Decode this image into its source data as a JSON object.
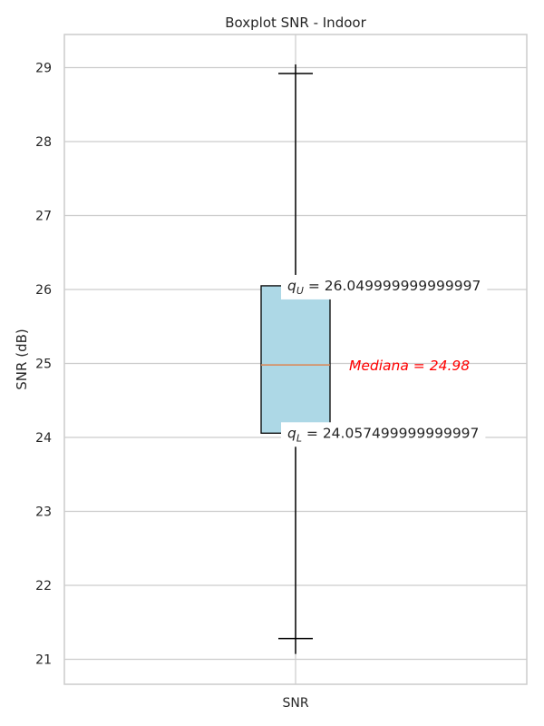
{
  "chart_data": {
    "type": "boxplot",
    "title": "Boxplot SNR - Indoor",
    "xlabel": "",
    "ylabel": "SNR (dB)",
    "categories": [
      "SNR"
    ],
    "ylim": [
      20.65,
      29.45
    ],
    "yticks": [
      21,
      22,
      23,
      24,
      25,
      26,
      27,
      28,
      29
    ],
    "grid": true,
    "box": {
      "whisker_low": 21.28,
      "q1": 24.057499999999997,
      "median": 24.98,
      "q3": 26.049999999999997,
      "whisker_high": 28.92
    },
    "colors": {
      "box_fill": "#add8e6",
      "median_line": "#dd8452",
      "median_text": "#ff0000",
      "grid": "#cccccc"
    },
    "annotations": {
      "upper": {
        "symbol": "q",
        "subscript": "U",
        "eq": " = ",
        "value": "26.049999999999997"
      },
      "median": {
        "text": "Mediana",
        "eq": " = ",
        "value": "24.98"
      },
      "lower": {
        "symbol": "q",
        "subscript": "L",
        "eq": " = ",
        "value": "24.057499999999997"
      }
    }
  }
}
